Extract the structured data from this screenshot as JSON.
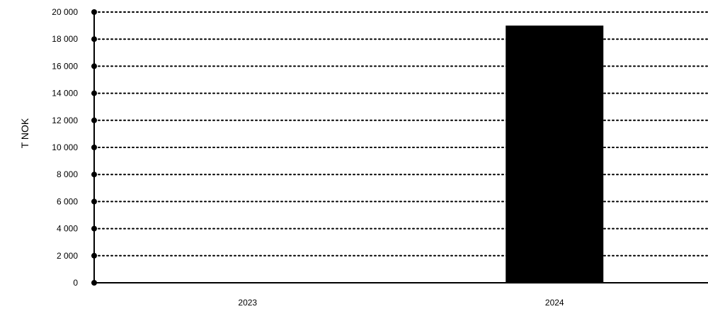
{
  "chart_data": {
    "type": "bar",
    "categories": [
      "2023",
      "2024"
    ],
    "values": [
      0,
      19000
    ],
    "ylabel": "T NOK",
    "ylim": [
      0,
      20000
    ],
    "yticks": [
      0,
      2000,
      4000,
      6000,
      8000,
      10000,
      12000,
      14000,
      16000,
      18000,
      20000
    ],
    "ytick_labels": [
      "0",
      "2 000",
      "4 000",
      "6 000",
      "8 000",
      "10 000",
      "12 000",
      "14 000",
      "16 000",
      "18 000",
      "20 000"
    ],
    "grid": true,
    "bar_color": "#000000"
  }
}
